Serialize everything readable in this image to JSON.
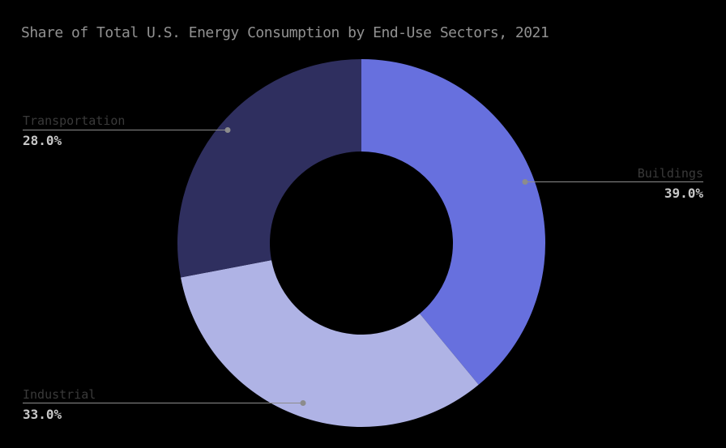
{
  "title": "Share of Total U.S. Energy Consumption by End-Use Sectors, 2021",
  "colors": {
    "background": "#000000",
    "title": "#919191",
    "callout_label": "#3a3a3a",
    "callout_value": "#c8c8c8",
    "leader": "#8c8c8c"
  },
  "chart_data": {
    "type": "pie",
    "subtype": "donut",
    "title": "Share of Total U.S. Energy Consumption by End-Use Sectors, 2021",
    "units": "percent of total",
    "direction": "clockwise",
    "start_angle": "12-oclock",
    "hole_ratio": 0.5,
    "legend_position": "none",
    "labels_style": "outside-callouts-with-leader-lines",
    "segments": [
      {
        "label": "Buildings",
        "value": 39.0,
        "display": "39.0%",
        "color": "#6770de"
      },
      {
        "label": "Industrial",
        "value": 33.0,
        "display": "33.0%",
        "color": "#afb3e5"
      },
      {
        "label": "Transportation",
        "value": 28.0,
        "display": "28.0%",
        "color": "#2f2f5f"
      }
    ]
  }
}
